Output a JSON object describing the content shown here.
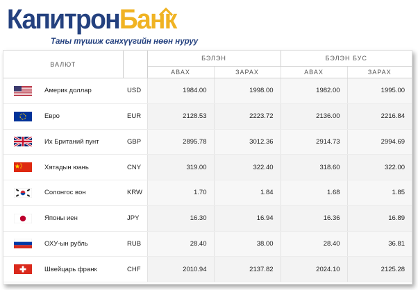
{
  "header": {
    "logo_part1": "Капитрон",
    "logo_part2": "Банк",
    "tagline": "Таны түшиж санхүүгийн нөөн нуруу"
  },
  "table": {
    "col_currency": "ВАЛЮТ",
    "group_cash": "БЭЛЭН",
    "group_noncash": "БЭЛЭН БУС",
    "buy": "АВАХ",
    "sell": "ЗАРАХ",
    "rows": [
      {
        "flag": "us-flag-icon",
        "name": "Америк доллар",
        "code": "USD",
        "cash_buy": "1984.00",
        "cash_sell": "1998.00",
        "noncash_buy": "1982.00",
        "noncash_sell": "1995.00"
      },
      {
        "flag": "eu-flag-icon",
        "name": "Евро",
        "code": "EUR",
        "cash_buy": "2128.53",
        "cash_sell": "2223.72",
        "noncash_buy": "2136.00",
        "noncash_sell": "2216.84"
      },
      {
        "flag": "gb-flag-icon",
        "name": "Их Британий пунт",
        "code": "GBP",
        "cash_buy": "2895.78",
        "cash_sell": "3012.36",
        "noncash_buy": "2914.73",
        "noncash_sell": "2994.69"
      },
      {
        "flag": "cn-flag-icon",
        "name": "Хятадын юань",
        "code": "CNY",
        "cash_buy": "319.00",
        "cash_sell": "322.40",
        "noncash_buy": "318.60",
        "noncash_sell": "322.00"
      },
      {
        "flag": "kr-flag-icon",
        "name": "Солонгос вон",
        "code": "KRW",
        "cash_buy": "1.70",
        "cash_sell": "1.84",
        "noncash_buy": "1.68",
        "noncash_sell": "1.85"
      },
      {
        "flag": "jp-flag-icon",
        "name": "Японы иен",
        "code": "JPY",
        "cash_buy": "16.30",
        "cash_sell": "16.94",
        "noncash_buy": "16.36",
        "noncash_sell": "16.89"
      },
      {
        "flag": "ru-flag-icon",
        "name": "ОХУ-ын рубль",
        "code": "RUB",
        "cash_buy": "28.40",
        "cash_sell": "38.00",
        "noncash_buy": "28.40",
        "noncash_sell": "36.81"
      },
      {
        "flag": "ch-flag-icon",
        "name": "Швейцарь франк",
        "code": "CHF",
        "cash_buy": "2010.94",
        "cash_sell": "2137.82",
        "noncash_buy": "2024.10",
        "noncash_sell": "2125.28"
      }
    ]
  },
  "colors": {
    "brand_blue": "#24417f",
    "brand_gold": "#f0b323"
  }
}
